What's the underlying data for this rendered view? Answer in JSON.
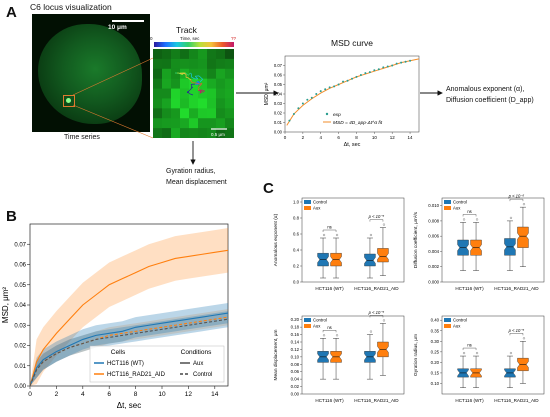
{
  "panel_A": {
    "letter": "A",
    "microscopy_title": "C6 locus visualization",
    "scale_label": "10 μm",
    "time_series_label": "Time series",
    "track_title": "Track",
    "colorbar_label": "Time, sec",
    "colorbar_min": "0",
    "colorbar_max": "??",
    "inset_scale_label": "0.5 μm",
    "msd_title": "MSD curve",
    "msd_xlabel": "Δt, sec",
    "msd_ylabel": "MSD, μm²",
    "msd_legend_exp": "exp",
    "msd_legend_fit": "MSD = 4D_app·Δt^α  fit",
    "outputs_line1": "Anomalous exponent (α),",
    "outputs_line2": "Diffusion coefficient (D_app)",
    "gyration_line1": "Gyration radius,",
    "gyration_line2": "Mean displacement",
    "colors": {
      "fit": "#f28e2b",
      "exp": "#2a9d8f",
      "green_bg": "#0a3d14"
    }
  },
  "panel_B": {
    "letter": "B",
    "legend_cells_title": "Cells",
    "legend_cells": [
      "HCT116 (WT)",
      "HCT116_RAD21_AID"
    ],
    "legend_conditions_title": "Conditions",
    "legend_conditions": [
      "Aux",
      "Control"
    ],
    "colors": {
      "wt": "#1f77b4",
      "rad21": "#ff7f0e"
    }
  },
  "panel_C": {
    "letter": "C",
    "legend": [
      "Control",
      "Aux"
    ],
    "categories": [
      "HCT116 (WT)",
      "HCT116_RAD21_AID"
    ],
    "sig_ns": "ns",
    "sig_p": "p < 10⁻⁵",
    "colors": {
      "control": "#1f77b4",
      "aux": "#ff7f0e"
    }
  },
  "chart_data": [
    {
      "type": "line",
      "panel": "A-inset",
      "title": "MSD curve",
      "xlabel": "Δt, sec",
      "ylabel": "MSD, μm²",
      "xlim": [
        0,
        15
      ],
      "ylim": [
        0,
        0.08
      ],
      "xticks": [
        0,
        2,
        4,
        6,
        8,
        10,
        12,
        14
      ],
      "yticks": [
        0.0,
        0.01,
        0.02,
        0.03,
        0.04,
        0.05,
        0.06,
        0.07
      ],
      "series": [
        {
          "name": "exp",
          "style": "scatter",
          "x": [
            0.5,
            1,
            1.5,
            2,
            2.5,
            3,
            3.5,
            4,
            4.5,
            5,
            5.5,
            6,
            6.5,
            7,
            7.5,
            8,
            8.5,
            9,
            9.5,
            10,
            10.5,
            11,
            11.5,
            12,
            12.5,
            13,
            13.5,
            14
          ],
          "y": [
            0.012,
            0.019,
            0.025,
            0.03,
            0.034,
            0.036,
            0.04,
            0.043,
            0.045,
            0.047,
            0.048,
            0.05,
            0.053,
            0.054,
            0.056,
            0.058,
            0.06,
            0.062,
            0.063,
            0.065,
            0.066,
            0.068,
            0.069,
            0.07,
            0.072,
            0.073,
            0.074,
            0.075
          ]
        },
        {
          "name": "MSD = 4D_app·Δt^α  fit",
          "style": "line",
          "x": [
            0.2,
            1,
            2,
            3,
            4,
            5,
            6,
            7,
            8,
            9,
            10,
            11,
            12,
            13,
            14,
            15
          ],
          "y": [
            0.007,
            0.019,
            0.028,
            0.035,
            0.041,
            0.046,
            0.05,
            0.054,
            0.058,
            0.061,
            0.064,
            0.067,
            0.07,
            0.073,
            0.075,
            0.077
          ]
        }
      ]
    },
    {
      "type": "area",
      "panel": "B",
      "xlabel": "Δt, sec",
      "ylabel": "MSD, μm²",
      "xlim": [
        0,
        15
      ],
      "ylim": [
        0,
        0.08
      ],
      "xticks": [
        0,
        2,
        4,
        6,
        8,
        10,
        12,
        14
      ],
      "yticks": [
        0.0,
        0.01,
        0.02,
        0.03,
        0.04,
        0.05,
        0.06,
        0.07
      ],
      "x": [
        0,
        0.5,
        1,
        2,
        3,
        4,
        5,
        6,
        7,
        8,
        9,
        10,
        11,
        12,
        13,
        14,
        15
      ],
      "series": [
        {
          "name": "HCT116_RAD21_AID Aux",
          "mean": [
            0,
            0.012,
            0.018,
            0.026,
            0.033,
            0.04,
            0.045,
            0.05,
            0.053,
            0.056,
            0.059,
            0.061,
            0.063,
            0.064,
            0.065,
            0.066,
            0.067
          ],
          "band": 0.011
        },
        {
          "name": "HCT116_RAD21_AID Control",
          "mean": [
            0,
            0.008,
            0.012,
            0.016,
            0.019,
            0.021,
            0.023,
            0.025,
            0.026,
            0.027,
            0.028,
            0.029,
            0.03,
            0.031,
            0.032,
            0.033,
            0.034
          ],
          "band": 0.004
        },
        {
          "name": "HCT116 (WT) Aux",
          "mean": [
            0,
            0.009,
            0.013,
            0.017,
            0.02,
            0.023,
            0.025,
            0.026,
            0.027,
            0.029,
            0.03,
            0.031,
            0.032,
            0.033,
            0.034,
            0.035,
            0.036
          ],
          "band": 0.005
        },
        {
          "name": "HCT116 (WT) Control",
          "mean": [
            0,
            0.008,
            0.012,
            0.016,
            0.019,
            0.021,
            0.023,
            0.024,
            0.025,
            0.026,
            0.027,
            0.028,
            0.029,
            0.03,
            0.031,
            0.032,
            0.033
          ],
          "band": 0.004
        }
      ]
    },
    {
      "type": "box",
      "panel": "C1",
      "ylabel": "Anomalous exponent (α)",
      "ylim": [
        0.0,
        1.05
      ],
      "yticks": [
        0.0,
        0.2,
        0.4,
        0.6,
        0.8,
        1.0
      ],
      "boxes": [
        {
          "cat": 0,
          "cond": "Control",
          "min": 0.05,
          "q1": 0.2,
          "med": 0.28,
          "q3": 0.36,
          "max": 0.55
        },
        {
          "cat": 0,
          "cond": "Aux",
          "min": 0.05,
          "q1": 0.2,
          "med": 0.28,
          "q3": 0.36,
          "max": 0.55
        },
        {
          "cat": 1,
          "cond": "Control",
          "min": 0.05,
          "q1": 0.2,
          "med": 0.27,
          "q3": 0.35,
          "max": 0.55
        },
        {
          "cat": 1,
          "cond": "Aux",
          "min": 0.08,
          "q1": 0.25,
          "med": 0.32,
          "q3": 0.42,
          "max": 0.68
        }
      ],
      "sig": [
        "ns",
        "p < 10⁻⁵"
      ]
    },
    {
      "type": "box",
      "panel": "C2",
      "ylabel": "Diffusion coefficient, μm²/s",
      "ylim": [
        0.0,
        0.011
      ],
      "yticks": [
        0.0,
        0.002,
        0.004,
        0.006,
        0.008,
        0.01
      ],
      "boxes": [
        {
          "cat": 0,
          "cond": "Control",
          "min": 0.0015,
          "q1": 0.0035,
          "med": 0.0045,
          "q3": 0.0055,
          "max": 0.0078
        },
        {
          "cat": 0,
          "cond": "Aux",
          "min": 0.0015,
          "q1": 0.0035,
          "med": 0.0045,
          "q3": 0.0055,
          "max": 0.0078
        },
        {
          "cat": 1,
          "cond": "Control",
          "min": 0.0015,
          "q1": 0.0035,
          "med": 0.0046,
          "q3": 0.0057,
          "max": 0.008
        },
        {
          "cat": 1,
          "cond": "Aux",
          "min": 0.002,
          "q1": 0.0045,
          "med": 0.006,
          "q3": 0.0072,
          "max": 0.0098
        }
      ],
      "sig": [
        "ns",
        "p < 10⁻⁵"
      ]
    },
    {
      "type": "box",
      "panel": "C3",
      "ylabel": "Mean displacement, μm",
      "ylim": [
        0.0,
        0.21
      ],
      "yticks": [
        0.0,
        0.02,
        0.04,
        0.06,
        0.08,
        0.1,
        0.12,
        0.14,
        0.16,
        0.18,
        0.2
      ],
      "boxes": [
        {
          "cat": 0,
          "cond": "Control",
          "min": 0.04,
          "q1": 0.085,
          "med": 0.1,
          "q3": 0.115,
          "max": 0.15
        },
        {
          "cat": 0,
          "cond": "Aux",
          "min": 0.04,
          "q1": 0.085,
          "med": 0.1,
          "q3": 0.115,
          "max": 0.15
        },
        {
          "cat": 1,
          "cond": "Control",
          "min": 0.04,
          "q1": 0.085,
          "med": 0.1,
          "q3": 0.115,
          "max": 0.16
        },
        {
          "cat": 1,
          "cond": "Aux",
          "min": 0.05,
          "q1": 0.1,
          "med": 0.12,
          "q3": 0.14,
          "max": 0.19
        }
      ],
      "sig": [
        "ns",
        "p < 10⁻⁵"
      ]
    },
    {
      "type": "box",
      "panel": "C4",
      "ylabel": "Gyration radius, μm",
      "ylim": [
        0.05,
        0.42
      ],
      "yticks": [
        0.1,
        0.15,
        0.2,
        0.25,
        0.3,
        0.35,
        0.4
      ],
      "boxes": [
        {
          "cat": 0,
          "cond": "Control",
          "min": 0.08,
          "q1": 0.13,
          "med": 0.15,
          "q3": 0.17,
          "max": 0.23
        },
        {
          "cat": 0,
          "cond": "Aux",
          "min": 0.08,
          "q1": 0.13,
          "med": 0.15,
          "q3": 0.17,
          "max": 0.23
        },
        {
          "cat": 1,
          "cond": "Control",
          "min": 0.08,
          "q1": 0.13,
          "med": 0.15,
          "q3": 0.17,
          "max": 0.23
        },
        {
          "cat": 1,
          "cond": "Aux",
          "min": 0.1,
          "q1": 0.16,
          "med": 0.19,
          "q3": 0.22,
          "max": 0.3
        }
      ],
      "sig": [
        "ns",
        "p < 10⁻⁵"
      ]
    }
  ]
}
